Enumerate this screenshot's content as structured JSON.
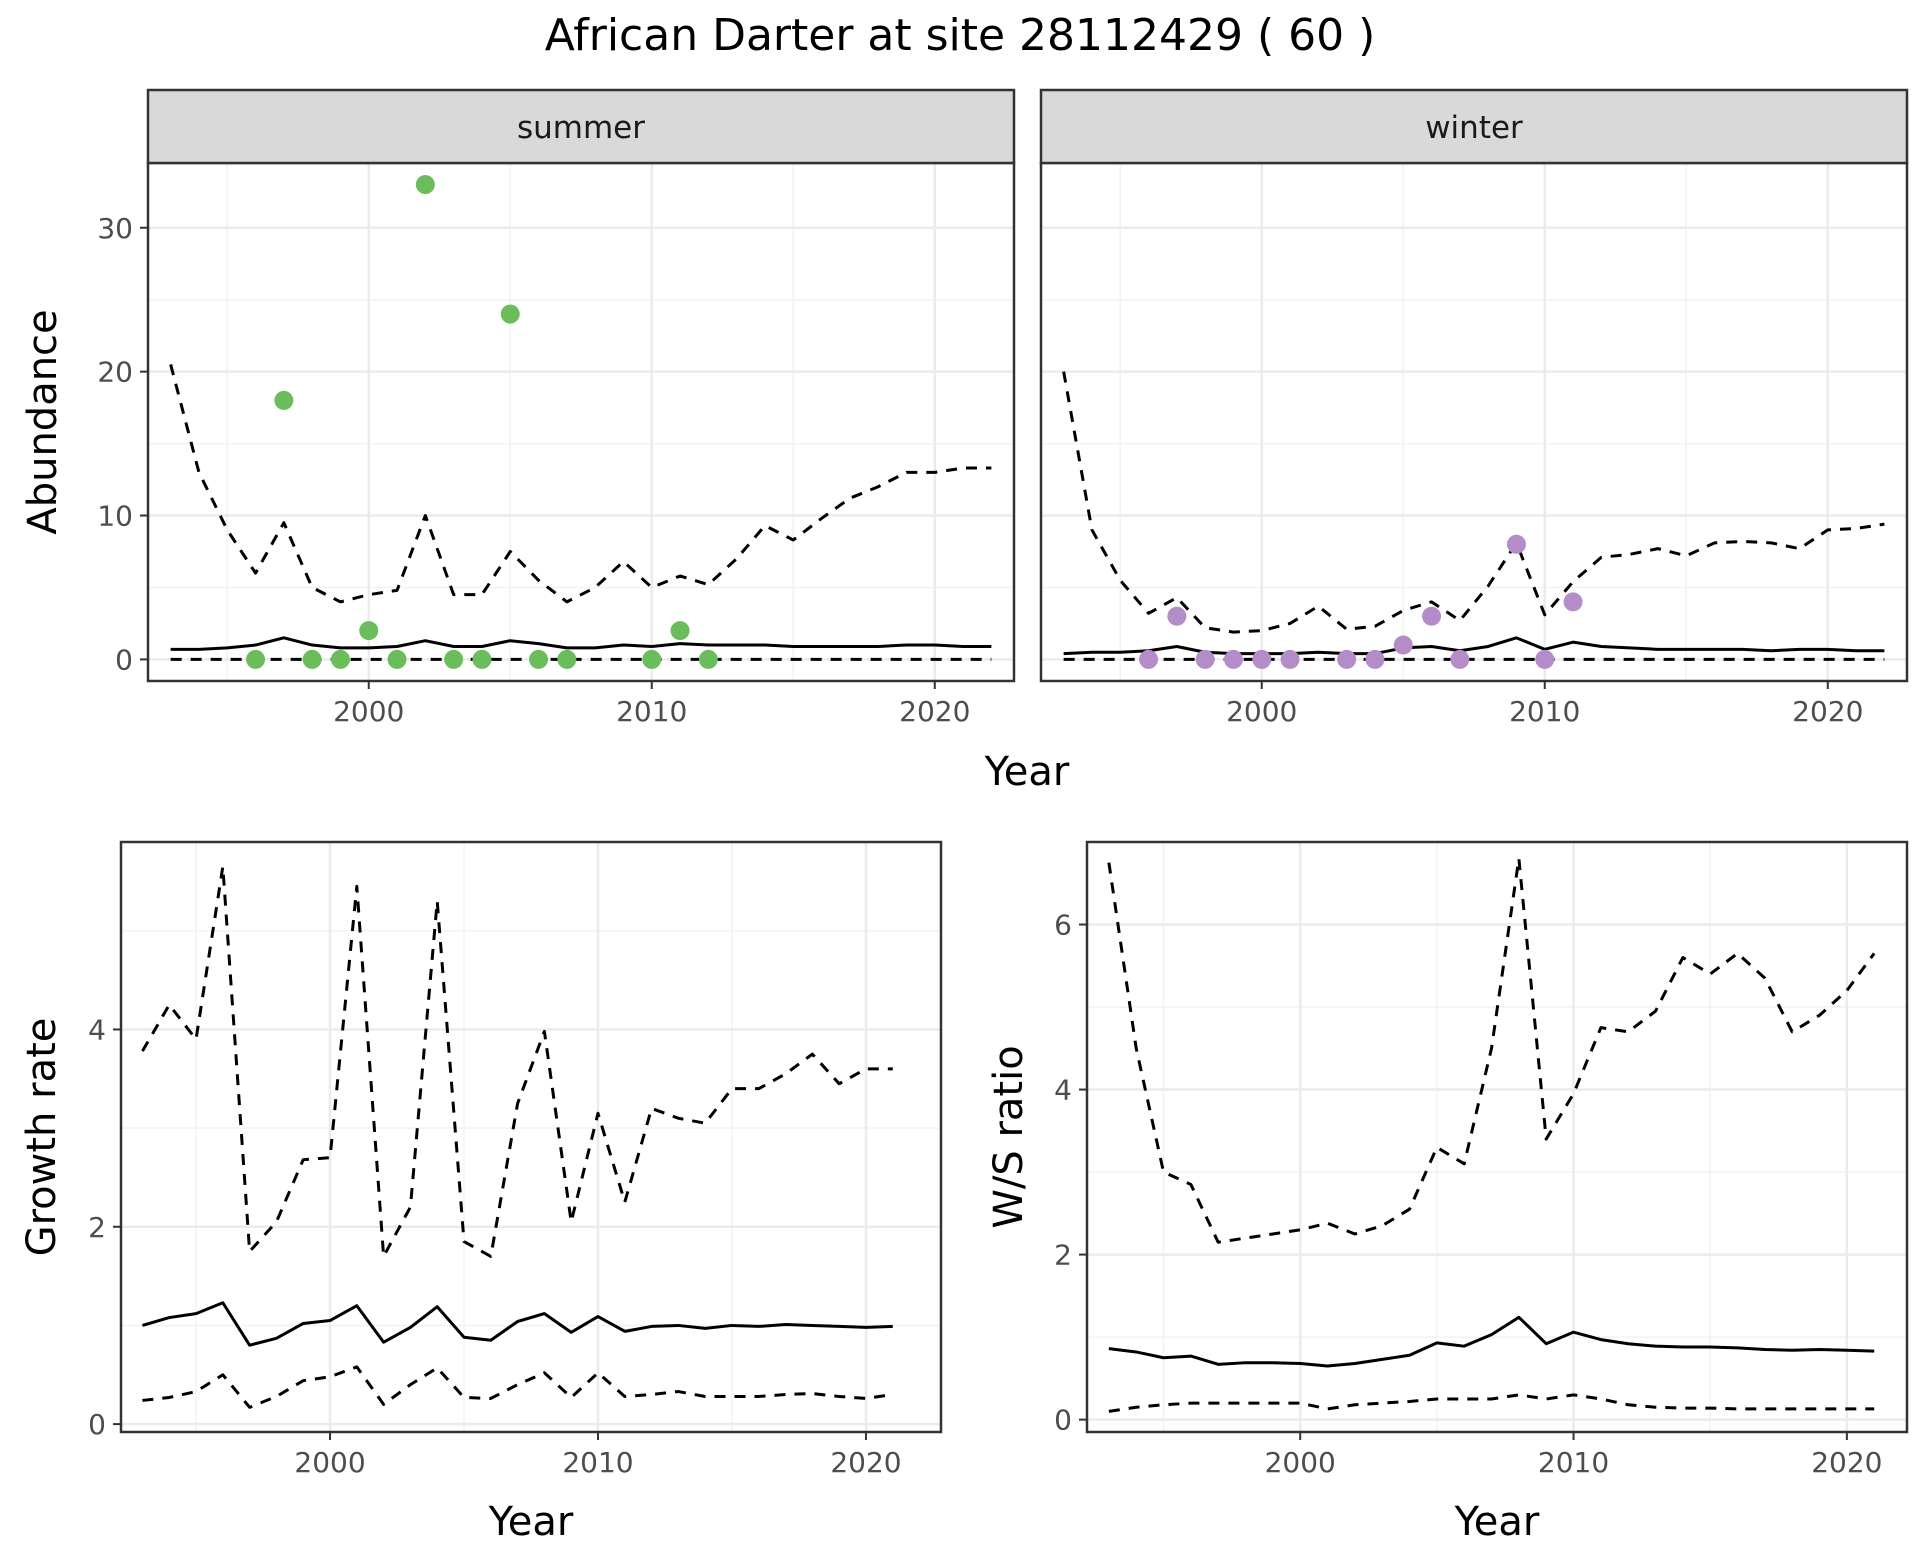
{
  "title": "African Darter at site 28112429 ( 60 )",
  "colors": {
    "summer_points": "#6abd5a",
    "winter_points": "#b48cc8",
    "lines": "#000000",
    "grid": "#ebebeb",
    "strip_bg": "#d9d9d9"
  },
  "chart_data": [
    {
      "id": "abundance",
      "type": "line",
      "panels": [
        "summer",
        "winter"
      ],
      "xlabel": "Year",
      "ylabel": "Abundance",
      "xlim": [
        1992.2,
        2022.8
      ],
      "ylim": [
        -1.5,
        34.5
      ],
      "xticks": [
        2000,
        2010,
        2020
      ],
      "yticks": [
        0,
        10,
        20,
        30
      ],
      "grid": true,
      "facets": [
        {
          "name": "summer",
          "x": [
            1993,
            1994,
            1995,
            1996,
            1997,
            1998,
            1999,
            2000,
            2001,
            2002,
            2003,
            2004,
            2005,
            2006,
            2007,
            2008,
            2009,
            2010,
            2011,
            2012,
            2013,
            2014,
            2015,
            2016,
            2017,
            2018,
            2019,
            2020,
            2021,
            2022
          ],
          "median": [
            0.7,
            0.7,
            0.8,
            1.0,
            1.5,
            1.0,
            0.8,
            0.8,
            0.9,
            1.3,
            0.9,
            0.9,
            1.3,
            1.1,
            0.8,
            0.8,
            1.0,
            0.9,
            1.1,
            1.0,
            1.0,
            1.0,
            0.9,
            0.9,
            0.9,
            0.9,
            1.0,
            1.0,
            0.9,
            0.9
          ],
          "upper": [
            20.5,
            13.0,
            9.0,
            6.0,
            9.5,
            5.0,
            4.0,
            4.5,
            4.8,
            10.0,
            4.5,
            4.5,
            7.5,
            5.5,
            4.0,
            5.0,
            6.8,
            5.0,
            5.8,
            5.2,
            7.0,
            9.3,
            8.3,
            9.8,
            11.2,
            12.0,
            13.0,
            13.0,
            13.3,
            13.3
          ],
          "lower": [
            0,
            0,
            0,
            0,
            0,
            0,
            0,
            0,
            0,
            0,
            0,
            0,
            0,
            0,
            0,
            0,
            0,
            0,
            0,
            0,
            0,
            0,
            0,
            0,
            0,
            0,
            0,
            0,
            0,
            0
          ],
          "points": {
            "x": [
              1996,
              1997,
              1998,
              1999,
              2000,
              2001,
              2002,
              2003,
              2004,
              2005,
              2006,
              2007,
              2010,
              2011,
              2012
            ],
            "y": [
              0,
              18,
              0,
              0,
              2,
              0,
              33,
              0,
              0,
              24,
              0,
              0,
              0,
              2,
              0
            ]
          }
        },
        {
          "name": "winter",
          "x": [
            1993,
            1994,
            1995,
            1996,
            1997,
            1998,
            1999,
            2000,
            2001,
            2002,
            2003,
            2004,
            2005,
            2006,
            2007,
            2008,
            2009,
            2010,
            2011,
            2012,
            2013,
            2014,
            2015,
            2016,
            2017,
            2018,
            2019,
            2020,
            2021,
            2022
          ],
          "median": [
            0.4,
            0.5,
            0.5,
            0.6,
            0.9,
            0.5,
            0.4,
            0.4,
            0.4,
            0.5,
            0.4,
            0.4,
            0.8,
            0.9,
            0.6,
            0.9,
            1.5,
            0.7,
            1.2,
            0.9,
            0.8,
            0.7,
            0.7,
            0.7,
            0.7,
            0.6,
            0.7,
            0.7,
            0.6,
            0.6
          ],
          "upper": [
            20.0,
            9.0,
            5.5,
            3.2,
            4.3,
            2.2,
            1.9,
            2.0,
            2.5,
            3.7,
            2.1,
            2.3,
            3.4,
            4.0,
            2.7,
            5.1,
            8.1,
            3.1,
            5.4,
            7.1,
            7.3,
            7.7,
            7.2,
            8.1,
            8.2,
            8.1,
            7.7,
            9.0,
            9.1,
            9.4
          ],
          "lower": [
            0,
            0,
            0,
            0,
            0,
            0,
            0,
            0,
            0,
            0,
            0,
            0,
            0,
            0,
            0,
            0,
            0,
            0,
            0,
            0,
            0,
            0,
            0,
            0,
            0,
            0,
            0,
            0,
            0,
            0
          ],
          "points": {
            "x": [
              1996,
              1997,
              1998,
              1999,
              2000,
              2001,
              2003,
              2004,
              2005,
              2006,
              2007,
              2009,
              2010,
              2011
            ],
            "y": [
              0,
              3,
              0,
              0,
              0,
              0,
              0,
              0,
              1,
              3,
              0,
              8,
              0,
              4
            ]
          }
        }
      ]
    },
    {
      "id": "growth",
      "type": "line",
      "xlabel": "Year",
      "ylabel": "Growth rate",
      "xlim": [
        1992.2,
        2022.8
      ],
      "ylim": [
        -0.08,
        5.9
      ],
      "xticks": [
        2000,
        2010,
        2020
      ],
      "yticks": [
        0,
        2,
        4
      ],
      "grid": true,
      "x": [
        1993,
        1994,
        1995,
        1996,
        1997,
        1998,
        1999,
        2000,
        2001,
        2002,
        2003,
        2004,
        2005,
        2006,
        2007,
        2008,
        2009,
        2010,
        2011,
        2012,
        2013,
        2014,
        2015,
        2016,
        2017,
        2018,
        2019,
        2020,
        2021
      ],
      "median": [
        1.0,
        1.08,
        1.12,
        1.23,
        0.8,
        0.87,
        1.02,
        1.05,
        1.2,
        0.83,
        0.98,
        1.19,
        0.88,
        0.85,
        1.04,
        1.12,
        0.93,
        1.09,
        0.94,
        0.99,
        1.0,
        0.97,
        1.0,
        0.99,
        1.01,
        1.0,
        0.99,
        0.98,
        0.99
      ],
      "upper": [
        3.78,
        4.25,
        3.9,
        5.65,
        1.75,
        2.05,
        2.68,
        2.7,
        5.45,
        1.7,
        2.2,
        5.3,
        1.85,
        1.7,
        3.25,
        3.98,
        2.05,
        3.15,
        2.25,
        3.2,
        3.1,
        3.05,
        3.4,
        3.4,
        3.55,
        3.75,
        3.45,
        3.6,
        3.6
      ],
      "lower": [
        0.24,
        0.27,
        0.33,
        0.5,
        0.17,
        0.28,
        0.44,
        0.48,
        0.58,
        0.2,
        0.4,
        0.57,
        0.27,
        0.26,
        0.4,
        0.52,
        0.27,
        0.52,
        0.28,
        0.3,
        0.33,
        0.28,
        0.28,
        0.28,
        0.3,
        0.31,
        0.28,
        0.26,
        0.3
      ]
    },
    {
      "id": "ws_ratio",
      "type": "line",
      "xlabel": "Year",
      "ylabel": "W/S ratio",
      "xlim": [
        1992.2,
        2022.2
      ],
      "ylim": [
        -0.15,
        7.0
      ],
      "xticks": [
        2000,
        2010,
        2020
      ],
      "yticks": [
        0,
        2,
        4,
        6
      ],
      "grid": true,
      "x": [
        1993,
        1994,
        1995,
        1996,
        1997,
        1998,
        1999,
        2000,
        2001,
        2002,
        2003,
        2004,
        2005,
        2006,
        2007,
        2008,
        2009,
        2010,
        2011,
        2012,
        2013,
        2014,
        2015,
        2016,
        2017,
        2018,
        2019,
        2020,
        2021
      ],
      "median": [
        0.86,
        0.82,
        0.75,
        0.77,
        0.67,
        0.69,
        0.69,
        0.68,
        0.65,
        0.68,
        0.73,
        0.78,
        0.93,
        0.89,
        1.03,
        1.24,
        0.92,
        1.06,
        0.97,
        0.92,
        0.89,
        0.88,
        0.88,
        0.87,
        0.85,
        0.84,
        0.85,
        0.84,
        0.83
      ],
      "upper": [
        6.75,
        4.5,
        3.0,
        2.85,
        2.15,
        2.2,
        2.25,
        2.3,
        2.38,
        2.25,
        2.35,
        2.55,
        3.3,
        3.1,
        4.5,
        6.8,
        3.4,
        3.95,
        4.75,
        4.7,
        4.95,
        5.6,
        5.4,
        5.65,
        5.35,
        4.7,
        4.9,
        5.2,
        5.65
      ],
      "lower": [
        0.1,
        0.15,
        0.18,
        0.2,
        0.2,
        0.2,
        0.2,
        0.2,
        0.13,
        0.18,
        0.2,
        0.22,
        0.25,
        0.25,
        0.25,
        0.3,
        0.25,
        0.3,
        0.25,
        0.18,
        0.15,
        0.14,
        0.14,
        0.13,
        0.13,
        0.13,
        0.13,
        0.13,
        0.13
      ]
    }
  ]
}
